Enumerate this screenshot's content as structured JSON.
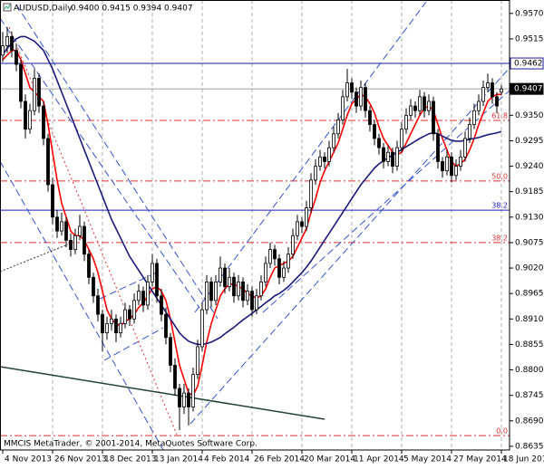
{
  "chart_data": {
    "type": "candlestick",
    "title": "AUDUSD,Daily",
    "quote": "0.9400 0.9415 0.9394 0.9407",
    "footer": "MMCIS MetaTrader, © 2001-2014, MetaQuotes Software Corp.",
    "ylim": [
      0.8627,
      0.9599
    ],
    "yticks": [
      {
        "value": 0.957,
        "label": "0.9570"
      },
      {
        "value": 0.9515,
        "label": "0.9515"
      },
      {
        "value": 0.935,
        "label": "0.9350"
      },
      {
        "value": 0.9295,
        "label": "0.9295"
      },
      {
        "value": 0.924,
        "label": "0.9240"
      },
      {
        "value": 0.9185,
        "label": "0.9185"
      },
      {
        "value": 0.913,
        "label": "0.9130"
      },
      {
        "value": 0.9075,
        "label": "0.9075"
      },
      {
        "value": 0.902,
        "label": "0.9020"
      },
      {
        "value": 0.8965,
        "label": "0.8965"
      },
      {
        "value": 0.891,
        "label": "0.8910"
      },
      {
        "value": 0.8855,
        "label": "0.8855"
      },
      {
        "value": 0.88,
        "label": "0.8800"
      },
      {
        "value": 0.8745,
        "label": "0.8745"
      },
      {
        "value": 0.869,
        "label": "0.8690"
      },
      {
        "value": 0.8635,
        "label": "0.8635"
      }
    ],
    "grid": true,
    "bull_color": "#ffffff",
    "bear_color": "#000000",
    "categories": [
      "4 Nov 2013",
      null,
      null,
      null,
      null,
      null,
      null,
      null,
      null,
      null,
      null,
      "26 Nov 2013",
      null,
      null,
      null,
      null,
      null,
      null,
      null,
      null,
      null,
      null,
      "18 Dec 2013",
      null,
      null,
      null,
      null,
      null,
      null,
      null,
      null,
      null,
      null,
      "13 Jan 2014",
      null,
      null,
      null,
      null,
      null,
      null,
      null,
      null,
      null,
      null,
      "4 Feb 2014",
      null,
      null,
      null,
      null,
      null,
      null,
      null,
      null,
      null,
      null,
      "26 Feb 2014",
      null,
      null,
      null,
      null,
      null,
      null,
      null,
      null,
      null,
      null,
      "20 Mar 2014",
      null,
      null,
      null,
      null,
      null,
      null,
      null,
      null,
      null,
      null,
      "11 Apr 2014",
      null,
      null,
      null,
      null,
      null,
      null,
      null,
      null,
      null,
      null,
      "5 May 2014",
      null,
      null,
      null,
      null,
      null,
      null,
      null,
      null,
      null,
      null,
      "27 May 2014",
      null,
      null,
      null,
      null,
      null,
      null,
      null,
      null,
      null,
      null,
      "18 Jun 2014"
    ],
    "ohlc": [
      [
        0.948,
        0.953,
        0.9465,
        0.95
      ],
      [
        0.95,
        0.954,
        0.9485,
        0.952
      ],
      [
        0.952,
        0.953,
        0.9475,
        0.949
      ],
      [
        0.949,
        0.9505,
        0.9445,
        0.946
      ],
      [
        0.946,
        0.947,
        0.9365,
        0.938
      ],
      [
        0.938,
        0.9395,
        0.93,
        0.932
      ],
      [
        0.932,
        0.9375,
        0.931,
        0.936
      ],
      [
        0.936,
        0.945,
        0.935,
        0.943
      ],
      [
        0.943,
        0.944,
        0.9355,
        0.937
      ],
      [
        0.937,
        0.938,
        0.9285,
        0.93
      ],
      [
        0.93,
        0.931,
        0.9185,
        0.92
      ],
      [
        0.92,
        0.9215,
        0.9115,
        0.913
      ],
      [
        0.913,
        0.9145,
        0.9085,
        0.91
      ],
      [
        0.91,
        0.914,
        0.909,
        0.912
      ],
      [
        0.912,
        0.913,
        0.9065,
        0.908
      ],
      [
        0.908,
        0.9095,
        0.9045,
        0.906
      ],
      [
        0.906,
        0.9105,
        0.905,
        0.909
      ],
      [
        0.909,
        0.9135,
        0.908,
        0.911
      ],
      [
        0.911,
        0.912,
        0.9035,
        0.905
      ],
      [
        0.905,
        0.906,
        0.8985,
        0.9
      ],
      [
        0.9,
        0.901,
        0.8945,
        0.896
      ],
      [
        0.896,
        0.8975,
        0.8905,
        0.892
      ],
      [
        0.892,
        0.893,
        0.884,
        0.888
      ],
      [
        0.888,
        0.8915,
        0.8865,
        0.89
      ],
      [
        0.89,
        0.893,
        0.8885,
        0.891
      ],
      [
        0.891,
        0.892,
        0.886,
        0.888
      ],
      [
        0.888,
        0.8915,
        0.887,
        0.89
      ],
      [
        0.89,
        0.8945,
        0.889,
        0.893
      ],
      [
        0.893,
        0.894,
        0.8895,
        0.891
      ],
      [
        0.891,
        0.8965,
        0.89,
        0.895
      ],
      [
        0.895,
        0.8985,
        0.894,
        0.897
      ],
      [
        0.897,
        0.898,
        0.8925,
        0.894
      ],
      [
        0.894,
        0.9005,
        0.893,
        0.899
      ],
      [
        0.899,
        0.905,
        0.898,
        0.903
      ],
      [
        0.903,
        0.904,
        0.8945,
        0.896
      ],
      [
        0.896,
        0.8975,
        0.8905,
        0.892
      ],
      [
        0.892,
        0.8935,
        0.8855,
        0.887
      ],
      [
        0.887,
        0.888,
        0.8795,
        0.881
      ],
      [
        0.881,
        0.8825,
        0.8745,
        0.876
      ],
      [
        0.876,
        0.877,
        0.867,
        0.872
      ],
      [
        0.872,
        0.877,
        0.8705,
        0.875
      ],
      [
        0.875,
        0.876,
        0.868,
        0.872
      ],
      [
        0.872,
        0.8805,
        0.871,
        0.879
      ],
      [
        0.879,
        0.8865,
        0.878,
        0.885
      ],
      [
        0.885,
        0.8945,
        0.884,
        0.893
      ],
      [
        0.893,
        0.9005,
        0.892,
        0.899
      ],
      [
        0.899,
        0.9,
        0.8935,
        0.895
      ],
      [
        0.895,
        0.9005,
        0.894,
        0.899
      ],
      [
        0.899,
        0.9045,
        0.898,
        0.902
      ],
      [
        0.902,
        0.903,
        0.8965,
        0.898
      ],
      [
        0.898,
        0.902,
        0.897,
        0.9
      ],
      [
        0.9,
        0.901,
        0.8945,
        0.896
      ],
      [
        0.896,
        0.9005,
        0.895,
        0.899
      ],
      [
        0.899,
        0.9,
        0.8935,
        0.895
      ],
      [
        0.895,
        0.8985,
        0.894,
        0.897
      ],
      [
        0.897,
        0.898,
        0.8915,
        0.893
      ],
      [
        0.893,
        0.8975,
        0.892,
        0.896
      ],
      [
        0.896,
        0.9005,
        0.895,
        0.899
      ],
      [
        0.899,
        0.9045,
        0.898,
        0.903
      ],
      [
        0.903,
        0.9075,
        0.902,
        0.906
      ],
      [
        0.906,
        0.907,
        0.9025,
        0.904
      ],
      [
        0.904,
        0.905,
        0.8985,
        0.9
      ],
      [
        0.9,
        0.9035,
        0.899,
        0.902
      ],
      [
        0.902,
        0.9065,
        0.901,
        0.905
      ],
      [
        0.905,
        0.9105,
        0.904,
        0.909
      ],
      [
        0.909,
        0.9135,
        0.908,
        0.912
      ],
      [
        0.912,
        0.913,
        0.9095,
        0.911
      ],
      [
        0.911,
        0.9165,
        0.91,
        0.915
      ],
      [
        0.915,
        0.9225,
        0.914,
        0.921
      ],
      [
        0.921,
        0.9255,
        0.92,
        0.924
      ],
      [
        0.924,
        0.9275,
        0.923,
        0.926
      ],
      [
        0.926,
        0.927,
        0.9235,
        0.925
      ],
      [
        0.925,
        0.9295,
        0.924,
        0.928
      ],
      [
        0.928,
        0.9325,
        0.927,
        0.931
      ],
      [
        0.931,
        0.9355,
        0.93,
        0.934
      ],
      [
        0.934,
        0.9405,
        0.933,
        0.939
      ],
      [
        0.939,
        0.945,
        0.938,
        0.942
      ],
      [
        0.942,
        0.943,
        0.9385,
        0.94
      ],
      [
        0.94,
        0.941,
        0.9355,
        0.937
      ],
      [
        0.937,
        0.9425,
        0.936,
        0.941
      ],
      [
        0.941,
        0.942,
        0.9345,
        0.936
      ],
      [
        0.936,
        0.937,
        0.9315,
        0.933
      ],
      [
        0.933,
        0.934,
        0.9285,
        0.93
      ],
      [
        0.93,
        0.931,
        0.9265,
        0.928
      ],
      [
        0.928,
        0.929,
        0.9235,
        0.925
      ],
      [
        0.925,
        0.9285,
        0.924,
        0.927
      ],
      [
        0.927,
        0.928,
        0.9225,
        0.924
      ],
      [
        0.924,
        0.9295,
        0.923,
        0.928
      ],
      [
        0.928,
        0.9335,
        0.927,
        0.932
      ],
      [
        0.932,
        0.9365,
        0.931,
        0.935
      ],
      [
        0.935,
        0.9385,
        0.934,
        0.937
      ],
      [
        0.937,
        0.938,
        0.9345,
        0.936
      ],
      [
        0.936,
        0.9405,
        0.935,
        0.939
      ],
      [
        0.939,
        0.94,
        0.9345,
        0.936
      ],
      [
        0.936,
        0.9395,
        0.935,
        0.938
      ],
      [
        0.938,
        0.939,
        0.9295,
        0.931
      ],
      [
        0.931,
        0.932,
        0.9235,
        0.925
      ],
      [
        0.925,
        0.926,
        0.9215,
        0.923
      ],
      [
        0.923,
        0.9275,
        0.922,
        0.926
      ],
      [
        0.926,
        0.927,
        0.9205,
        0.922
      ],
      [
        0.922,
        0.9255,
        0.921,
        0.924
      ],
      [
        0.924,
        0.9275,
        0.923,
        0.926
      ],
      [
        0.926,
        0.9315,
        0.925,
        0.93
      ],
      [
        0.93,
        0.9345,
        0.929,
        0.933
      ],
      [
        0.933,
        0.9375,
        0.932,
        0.936
      ],
      [
        0.936,
        0.9395,
        0.935,
        0.938
      ],
      [
        0.938,
        0.9425,
        0.937,
        0.941
      ],
      [
        0.941,
        0.944,
        0.94,
        0.942
      ],
      [
        0.942,
        0.943,
        0.9375,
        0.939
      ],
      [
        0.939,
        0.94,
        0.9355,
        0.937
      ],
      [
        0.94,
        0.9415,
        0.9394,
        0.9407
      ]
    ],
    "series": [
      {
        "color": "#ff0000",
        "values": [
          0.947,
          0.948,
          0.949,
          0.949,
          0.947,
          0.944,
          0.941,
          0.94,
          0.939,
          0.938,
          0.933,
          0.927,
          0.921,
          0.916,
          0.913,
          0.91,
          0.909,
          0.909,
          0.908,
          0.906,
          0.904,
          0.901,
          0.897,
          0.893,
          0.891,
          0.89,
          0.8895,
          0.8905,
          0.891,
          0.892,
          0.8935,
          0.8945,
          0.896,
          0.8975,
          0.898,
          0.897,
          0.895,
          0.891,
          0.886,
          0.881,
          0.878,
          0.875,
          0.8745,
          0.8765,
          0.881,
          0.886,
          0.89,
          0.893,
          0.896,
          0.8975,
          0.8985,
          0.8985,
          0.898,
          0.8975,
          0.8965,
          0.896,
          0.8955,
          0.896,
          0.8975,
          0.9,
          0.902,
          0.9025,
          0.903,
          0.9035,
          0.9045,
          0.9065,
          0.9085,
          0.9105,
          0.914,
          0.917,
          0.9205,
          0.923,
          0.925,
          0.927,
          0.929,
          0.932,
          0.935,
          0.9375,
          0.9385,
          0.9395,
          0.939,
          0.9375,
          0.9355,
          0.9325,
          0.93,
          0.9285,
          0.927,
          0.9265,
          0.927,
          0.929,
          0.931,
          0.933,
          0.935,
          0.9365,
          0.937,
          0.936,
          0.933,
          0.93,
          0.9275,
          0.925,
          0.924,
          0.9245,
          0.9255,
          0.9275,
          0.93,
          0.933,
          0.9355,
          0.938,
          0.939,
          0.9395,
          0.9395
        ]
      },
      {
        "color": "#1a1a7a",
        "values": [
          0.948,
          0.9495,
          0.9505,
          0.9515,
          0.952,
          0.952,
          0.9515,
          0.951,
          0.95,
          0.949,
          0.947,
          0.945,
          0.9425,
          0.94,
          0.9375,
          0.935,
          0.9325,
          0.93,
          0.9275,
          0.925,
          0.9225,
          0.92,
          0.9175,
          0.915,
          0.9125,
          0.9105,
          0.9085,
          0.9065,
          0.9045,
          0.903,
          0.9015,
          0.9,
          0.8985,
          0.897,
          0.8955,
          0.894,
          0.8925,
          0.891,
          0.8895,
          0.888,
          0.887,
          0.8862,
          0.8858,
          0.8855,
          0.8855,
          0.8857,
          0.886,
          0.8865,
          0.887,
          0.8878,
          0.8885,
          0.8892,
          0.89,
          0.8908,
          0.8915,
          0.8922,
          0.893,
          0.8937,
          0.8945,
          0.8952,
          0.896,
          0.8965,
          0.8972,
          0.898,
          0.899,
          0.9,
          0.901,
          0.9022,
          0.9035,
          0.905,
          0.9065,
          0.908,
          0.9095,
          0.911,
          0.9125,
          0.914,
          0.9155,
          0.917,
          0.9185,
          0.92,
          0.9212,
          0.9224,
          0.9236,
          0.9245,
          0.9252,
          0.9258,
          0.9264,
          0.927,
          0.9276,
          0.9282,
          0.9288,
          0.9294,
          0.93,
          0.9305,
          0.931,
          0.9312,
          0.931,
          0.9305,
          0.93,
          0.9296,
          0.9294,
          0.9294,
          0.9296,
          0.9298,
          0.93,
          0.9302,
          0.9305,
          0.9308,
          0.931,
          0.9312,
          0.9315
        ]
      }
    ],
    "levels": [
      {
        "value": 0.9462,
        "label": "0.9462",
        "color": "#1a1a9a",
        "dash": "solid",
        "tag": "axis-box"
      },
      {
        "value": 0.9407,
        "label": "0.9407",
        "color": "#a0a0a0",
        "dash": "solid",
        "tag": "axis-box-dark"
      },
      {
        "value": 0.9339,
        "label": "61.8",
        "color": "#e03030",
        "dash": "dashdot",
        "tag": "fib"
      },
      {
        "value": 0.9208,
        "label": "50.0",
        "color": "#e03030",
        "dash": "dashdot",
        "tag": "fib"
      },
      {
        "value": 0.9145,
        "label": "38.2",
        "color": "#1a1acc",
        "dash": "solid",
        "tag": "fib"
      },
      {
        "value": 0.9075,
        "label": "38.2",
        "color": "#e03030",
        "dash": "dashdot",
        "tag": "fib"
      },
      {
        "value": 0.8658,
        "label": "0.0",
        "color": "#e03030",
        "dash": "dashdot",
        "tag": "fib"
      }
    ]
  }
}
